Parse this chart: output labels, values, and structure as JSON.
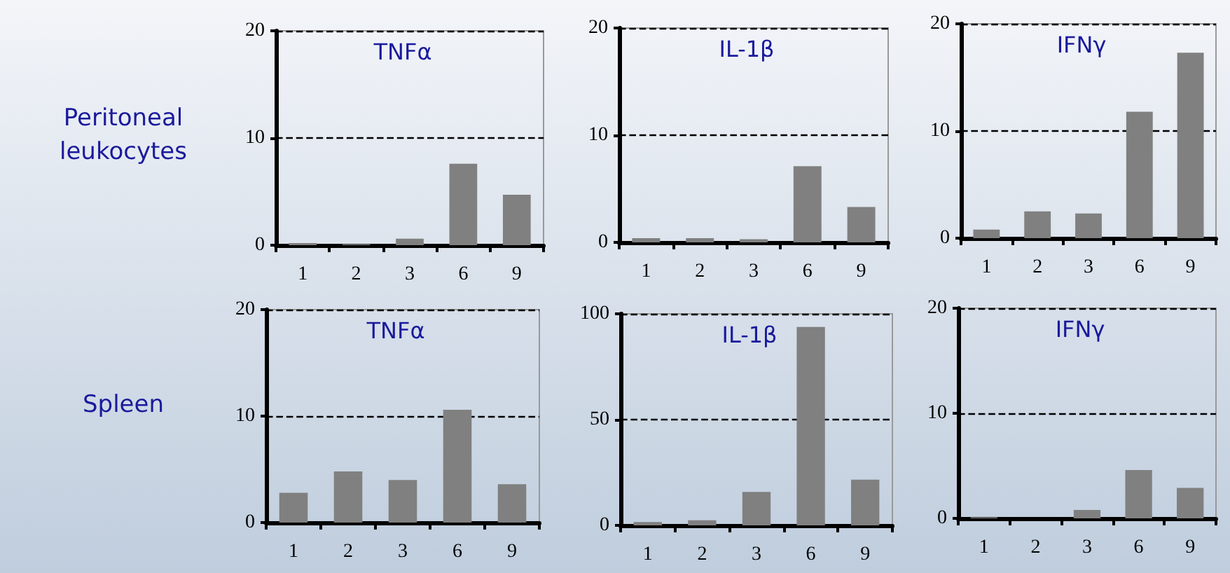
{
  "chart_data": [
    {
      "type": "bar",
      "title": "TNFα",
      "annotations": [
        "Peritoneal leukocytes"
      ],
      "categories": [
        "1",
        "2",
        "3",
        "6",
        "9"
      ],
      "series": [
        {
          "color": "#808080",
          "values": [
            0.2,
            0.1,
            0.6,
            7.6,
            4.7
          ]
        }
      ],
      "ylim": [
        0,
        20
      ],
      "yticks": [
        0,
        10,
        20
      ],
      "grid": "y"
    },
    {
      "type": "bar",
      "title": "IL-1β",
      "categories": [
        "1",
        "2",
        "3",
        "6",
        "9"
      ],
      "series": [
        {
          "color": "#808080",
          "values": [
            0.4,
            0.4,
            0.3,
            7.1,
            3.3
          ]
        }
      ],
      "ylim": [
        0,
        20
      ],
      "yticks": [
        0,
        10,
        20
      ],
      "grid": "y"
    },
    {
      "type": "bar",
      "title": "IFNγ",
      "categories": [
        "1",
        "2",
        "3",
        "6",
        "9"
      ],
      "series": [
        {
          "color": "#808080",
          "values": [
            0.8,
            2.5,
            2.3,
            11.8,
            17.3
          ]
        }
      ],
      "ylim": [
        0,
        20
      ],
      "yticks": [
        0,
        10,
        20
      ],
      "grid": "y"
    },
    {
      "type": "bar",
      "title": "TNFα",
      "annotations": [
        "Spleen"
      ],
      "categories": [
        "1",
        "2",
        "3",
        "6",
        "9"
      ],
      "series": [
        {
          "color": "#808080",
          "values": [
            2.8,
            4.8,
            4.0,
            10.6,
            3.6
          ]
        }
      ],
      "ylim": [
        0,
        20
      ],
      "yticks": [
        0,
        10,
        20
      ],
      "grid": "y"
    },
    {
      "type": "bar",
      "title": "IL-1β",
      "categories": [
        "1",
        "2",
        "3",
        "6",
        "9"
      ],
      "series": [
        {
          "color": "#808080",
          "values": [
            1.6,
            2.4,
            15.8,
            93.8,
            21.6
          ]
        }
      ],
      "ylim": [
        0,
        100
      ],
      "yticks": [
        0,
        50,
        100
      ],
      "grid": "y"
    },
    {
      "type": "bar",
      "title": "IFNγ",
      "categories": [
        "1",
        "2",
        "3",
        "6",
        "9"
      ],
      "series": [
        {
          "color": "#808080",
          "values": [
            0.1,
            0,
            0.8,
            4.6,
            2.9
          ]
        }
      ],
      "ylim": [
        0,
        20
      ],
      "yticks": [
        0,
        10,
        20
      ],
      "grid": "y"
    }
  ]
}
